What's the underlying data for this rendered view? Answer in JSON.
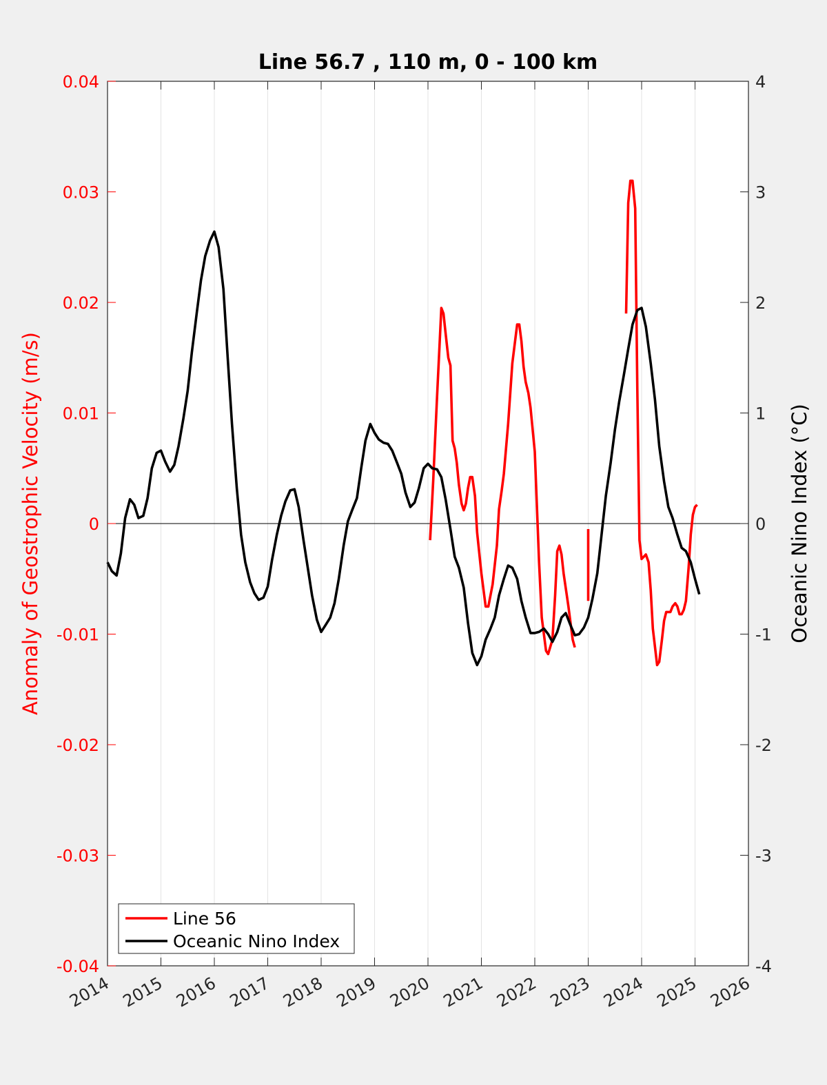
{
  "chart_data": {
    "type": "line",
    "title": "Line 56.7 , 110 m, 0 - 100 km",
    "ylabel_left": "Anomaly of Geostrophic Velocity (m/s)",
    "ylabel_right": "Oceanic Nino Index (°C)",
    "xlabel": "",
    "xlim": [
      2014,
      2026
    ],
    "ylim_left": [
      -0.04,
      0.04
    ],
    "ylim_right": [
      -4,
      4
    ],
    "x_ticks": [
      "2014",
      "2015",
      "2016",
      "2017",
      "2018",
      "2019",
      "2020",
      "2021",
      "2022",
      "2023",
      "2024",
      "2025",
      "2026"
    ],
    "y_left_ticks": [
      "-0.04",
      "-0.03",
      "-0.02",
      "-0.01",
      "0",
      "0.01",
      "0.02",
      "0.03",
      "0.04"
    ],
    "y_right_ticks": [
      "-4",
      "-3",
      "-2",
      "-1",
      "0",
      "1",
      "2",
      "3",
      "4"
    ],
    "vertical_grid": true,
    "zero_line": true,
    "legend_position": "bottom-left",
    "colors": {
      "line56": "#ff0000",
      "oni": "#000000",
      "left_axis": "#ff0000",
      "right_axis": "#000000"
    },
    "series": [
      {
        "name": "Line 56",
        "axis": "left",
        "color": "#ff0000",
        "segments": [
          [
            [
              2020.04,
              -0.0015
            ],
            [
              2020.1,
              0.004
            ],
            [
              2020.17,
              0.0115
            ],
            [
              2020.25,
              0.0195
            ],
            [
              2020.29,
              0.019
            ],
            [
              2020.33,
              0.0172
            ],
            [
              2020.38,
              0.015
            ],
            [
              2020.42,
              0.0143
            ],
            [
              2020.46,
              0.0075
            ],
            [
              2020.5,
              0.0068
            ],
            [
              2020.54,
              0.0055
            ],
            [
              2020.58,
              0.0035
            ],
            [
              2020.63,
              0.0018
            ],
            [
              2020.67,
              0.0012
            ],
            [
              2020.71,
              0.0018
            ],
            [
              2020.75,
              0.0032
            ],
            [
              2020.79,
              0.0042
            ],
            [
              2020.83,
              0.0042
            ],
            [
              2020.88,
              0.0025
            ],
            [
              2020.92,
              -0.0008
            ],
            [
              2021.0,
              -0.0045
            ],
            [
              2021.08,
              -0.0075
            ],
            [
              2021.13,
              -0.0075
            ],
            [
              2021.21,
              -0.0055
            ],
            [
              2021.29,
              -0.002
            ],
            [
              2021.33,
              0.0013
            ],
            [
              2021.38,
              0.003
            ],
            [
              2021.42,
              0.0045
            ],
            [
              2021.5,
              0.009
            ],
            [
              2021.58,
              0.0145
            ],
            [
              2021.67,
              0.018
            ],
            [
              2021.71,
              0.018
            ],
            [
              2021.75,
              0.0165
            ],
            [
              2021.79,
              0.0142
            ],
            [
              2021.83,
              0.0128
            ],
            [
              2021.88,
              0.0118
            ],
            [
              2021.92,
              0.0105
            ],
            [
              2022.0,
              0.0065
            ],
            [
              2022.04,
              0.0015
            ],
            [
              2022.08,
              -0.0035
            ],
            [
              2022.13,
              -0.0085
            ],
            [
              2022.21,
              -0.0115
            ],
            [
              2022.25,
              -0.0118
            ],
            [
              2022.33,
              -0.0105
            ],
            [
              2022.38,
              -0.0065
            ],
            [
              2022.42,
              -0.0025
            ],
            [
              2022.46,
              -0.002
            ],
            [
              2022.5,
              -0.0028
            ],
            [
              2022.54,
              -0.0045
            ],
            [
              2022.63,
              -0.0075
            ],
            [
              2022.71,
              -0.0105
            ],
            [
              2022.75,
              -0.0112
            ]
          ],
          [
            [
              2023.0,
              -0.0005
            ],
            [
              2023.0,
              -0.007
            ]
          ],
          [
            [
              2023.71,
              0.019
            ],
            [
              2023.75,
              0.029
            ],
            [
              2023.79,
              0.031
            ],
            [
              2023.83,
              0.031
            ],
            [
              2023.88,
              0.0285
            ],
            [
              2023.92,
              0.012
            ],
            [
              2023.96,
              -0.0015
            ],
            [
              2024.0,
              -0.0032
            ],
            [
              2024.04,
              -0.003
            ],
            [
              2024.08,
              -0.0028
            ],
            [
              2024.13,
              -0.0035
            ],
            [
              2024.17,
              -0.006
            ],
            [
              2024.21,
              -0.0095
            ],
            [
              2024.29,
              -0.0128
            ],
            [
              2024.33,
              -0.0125
            ],
            [
              2024.38,
              -0.0105
            ],
            [
              2024.42,
              -0.0088
            ],
            [
              2024.46,
              -0.008
            ],
            [
              2024.5,
              -0.008
            ],
            [
              2024.54,
              -0.008
            ],
            [
              2024.58,
              -0.0075
            ],
            [
              2024.63,
              -0.0072
            ],
            [
              2024.67,
              -0.0075
            ],
            [
              2024.71,
              -0.0082
            ],
            [
              2024.75,
              -0.0082
            ],
            [
              2024.79,
              -0.0078
            ],
            [
              2024.83,
              -0.007
            ],
            [
              2024.88,
              -0.004
            ],
            [
              2024.92,
              -0.001
            ],
            [
              2024.96,
              0.0008
            ],
            [
              2025.0,
              0.0015
            ],
            [
              2025.04,
              0.0017
            ]
          ]
        ]
      },
      {
        "name": "Oceanic Nino Index",
        "axis": "right",
        "color": "#000000",
        "points": [
          [
            2014.0,
            -0.35
          ],
          [
            2014.08,
            -0.43
          ],
          [
            2014.17,
            -0.47
          ],
          [
            2014.25,
            -0.27
          ],
          [
            2014.33,
            0.05
          ],
          [
            2014.42,
            0.22
          ],
          [
            2014.5,
            0.17
          ],
          [
            2014.58,
            0.05
          ],
          [
            2014.67,
            0.07
          ],
          [
            2014.75,
            0.23
          ],
          [
            2014.83,
            0.5
          ],
          [
            2014.92,
            0.64
          ],
          [
            2015.0,
            0.66
          ],
          [
            2015.08,
            0.56
          ],
          [
            2015.17,
            0.47
          ],
          [
            2015.25,
            0.53
          ],
          [
            2015.33,
            0.7
          ],
          [
            2015.42,
            0.95
          ],
          [
            2015.5,
            1.2
          ],
          [
            2015.58,
            1.55
          ],
          [
            2015.67,
            1.9
          ],
          [
            2015.75,
            2.2
          ],
          [
            2015.83,
            2.42
          ],
          [
            2015.92,
            2.56
          ],
          [
            2016.0,
            2.64
          ],
          [
            2016.08,
            2.5
          ],
          [
            2016.17,
            2.12
          ],
          [
            2016.25,
            1.5
          ],
          [
            2016.33,
            0.9
          ],
          [
            2016.42,
            0.32
          ],
          [
            2016.5,
            -0.1
          ],
          [
            2016.58,
            -0.35
          ],
          [
            2016.67,
            -0.53
          ],
          [
            2016.75,
            -0.63
          ],
          [
            2016.83,
            -0.69
          ],
          [
            2016.92,
            -0.67
          ],
          [
            2017.0,
            -0.57
          ],
          [
            2017.08,
            -0.33
          ],
          [
            2017.17,
            -0.1
          ],
          [
            2017.25,
            0.07
          ],
          [
            2017.33,
            0.2
          ],
          [
            2017.42,
            0.3
          ],
          [
            2017.5,
            0.31
          ],
          [
            2017.58,
            0.15
          ],
          [
            2017.67,
            -0.15
          ],
          [
            2017.75,
            -0.4
          ],
          [
            2017.83,
            -0.65
          ],
          [
            2017.92,
            -0.87
          ],
          [
            2018.0,
            -0.98
          ],
          [
            2018.08,
            -0.92
          ],
          [
            2018.17,
            -0.85
          ],
          [
            2018.25,
            -0.72
          ],
          [
            2018.33,
            -0.5
          ],
          [
            2018.42,
            -0.2
          ],
          [
            2018.5,
            0.02
          ],
          [
            2018.58,
            0.12
          ],
          [
            2018.67,
            0.23
          ],
          [
            2018.75,
            0.5
          ],
          [
            2018.83,
            0.75
          ],
          [
            2018.92,
            0.9
          ],
          [
            2019.0,
            0.82
          ],
          [
            2019.08,
            0.76
          ],
          [
            2019.17,
            0.73
          ],
          [
            2019.25,
            0.72
          ],
          [
            2019.33,
            0.66
          ],
          [
            2019.42,
            0.55
          ],
          [
            2019.5,
            0.45
          ],
          [
            2019.58,
            0.28
          ],
          [
            2019.67,
            0.15
          ],
          [
            2019.75,
            0.19
          ],
          [
            2019.83,
            0.32
          ],
          [
            2019.92,
            0.5
          ],
          [
            2020.0,
            0.54
          ],
          [
            2020.08,
            0.5
          ],
          [
            2020.17,
            0.49
          ],
          [
            2020.25,
            0.42
          ],
          [
            2020.33,
            0.22
          ],
          [
            2020.42,
            -0.05
          ],
          [
            2020.5,
            -0.3
          ],
          [
            2020.58,
            -0.4
          ],
          [
            2020.67,
            -0.58
          ],
          [
            2020.75,
            -0.9
          ],
          [
            2020.83,
            -1.17
          ],
          [
            2020.92,
            -1.28
          ],
          [
            2021.0,
            -1.2
          ],
          [
            2021.08,
            -1.05
          ],
          [
            2021.17,
            -0.95
          ],
          [
            2021.25,
            -0.85
          ],
          [
            2021.33,
            -0.65
          ],
          [
            2021.42,
            -0.5
          ],
          [
            2021.5,
            -0.38
          ],
          [
            2021.58,
            -0.4
          ],
          [
            2021.67,
            -0.5
          ],
          [
            2021.75,
            -0.7
          ],
          [
            2021.83,
            -0.85
          ],
          [
            2021.92,
            -0.99
          ],
          [
            2022.0,
            -0.99
          ],
          [
            2022.08,
            -0.98
          ],
          [
            2022.17,
            -0.95
          ],
          [
            2022.25,
            -1.0
          ],
          [
            2022.33,
            -1.07
          ],
          [
            2022.42,
            -0.98
          ],
          [
            2022.5,
            -0.85
          ],
          [
            2022.58,
            -0.81
          ],
          [
            2022.67,
            -0.92
          ],
          [
            2022.75,
            -1.01
          ],
          [
            2022.83,
            -1.0
          ],
          [
            2022.92,
            -0.94
          ],
          [
            2023.0,
            -0.85
          ],
          [
            2023.08,
            -0.68
          ],
          [
            2023.17,
            -0.45
          ],
          [
            2023.25,
            -0.1
          ],
          [
            2023.33,
            0.25
          ],
          [
            2023.42,
            0.55
          ],
          [
            2023.5,
            0.85
          ],
          [
            2023.58,
            1.1
          ],
          [
            2023.67,
            1.35
          ],
          [
            2023.75,
            1.58
          ],
          [
            2023.83,
            1.8
          ],
          [
            2023.92,
            1.93
          ],
          [
            2024.0,
            1.95
          ],
          [
            2024.08,
            1.78
          ],
          [
            2024.17,
            1.45
          ],
          [
            2024.25,
            1.12
          ],
          [
            2024.33,
            0.7
          ],
          [
            2024.42,
            0.38
          ],
          [
            2024.5,
            0.15
          ],
          [
            2024.58,
            0.05
          ],
          [
            2024.67,
            -0.1
          ],
          [
            2024.75,
            -0.22
          ],
          [
            2024.83,
            -0.25
          ],
          [
            2024.92,
            -0.35
          ],
          [
            2025.0,
            -0.5
          ],
          [
            2025.08,
            -0.64
          ]
        ]
      }
    ]
  }
}
